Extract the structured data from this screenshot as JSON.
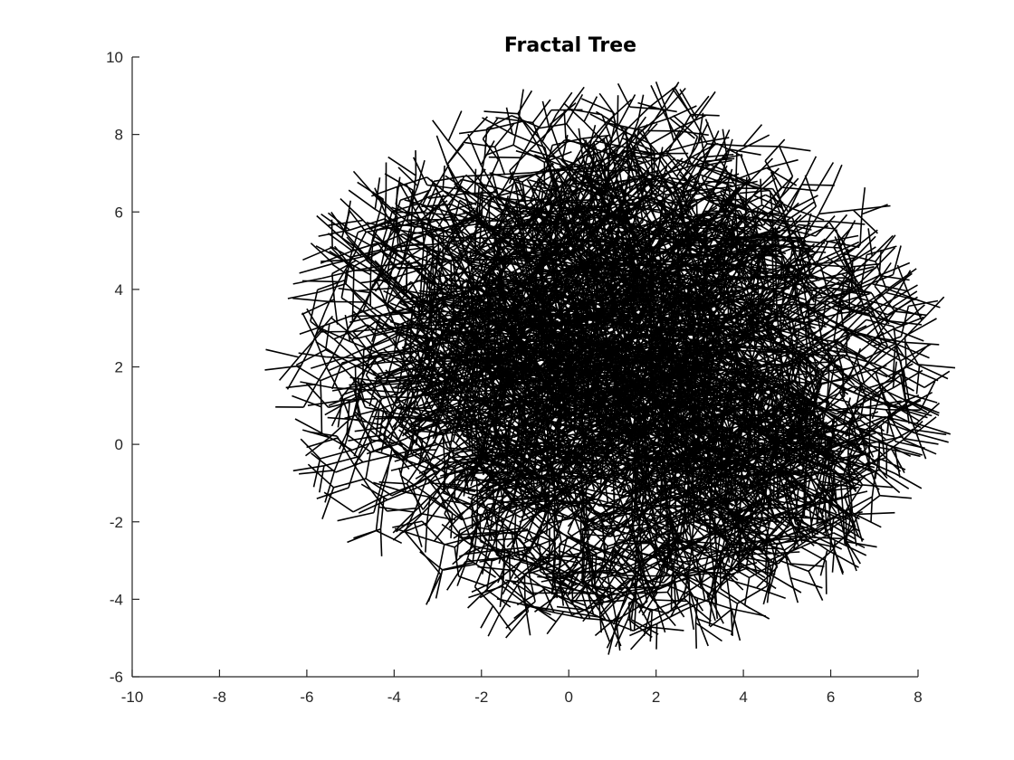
{
  "chart_data": {
    "type": "line",
    "title": "Fractal Tree",
    "xlabel": "",
    "ylabel": "",
    "xlim": [
      -10,
      8
    ],
    "ylim": [
      -6,
      10
    ],
    "xticks": [
      -10,
      -8,
      -6,
      -4,
      -2,
      0,
      2,
      4,
      6,
      8
    ],
    "yticks": [
      -6,
      -4,
      -2,
      0,
      2,
      4,
      6,
      8,
      10
    ],
    "grid": false,
    "legend": "none",
    "line_color": "#000000",
    "series": [
      {
        "tree": {
          "root": [
            1.5,
            -4.8
          ],
          "trunk_direction_deg": 90,
          "segment_length": 0.75,
          "depth": 11,
          "branch_angles_deg": [
            -120,
            0,
            120
          ],
          "initial_heading_deg": 90
        }
      }
    ]
  }
}
